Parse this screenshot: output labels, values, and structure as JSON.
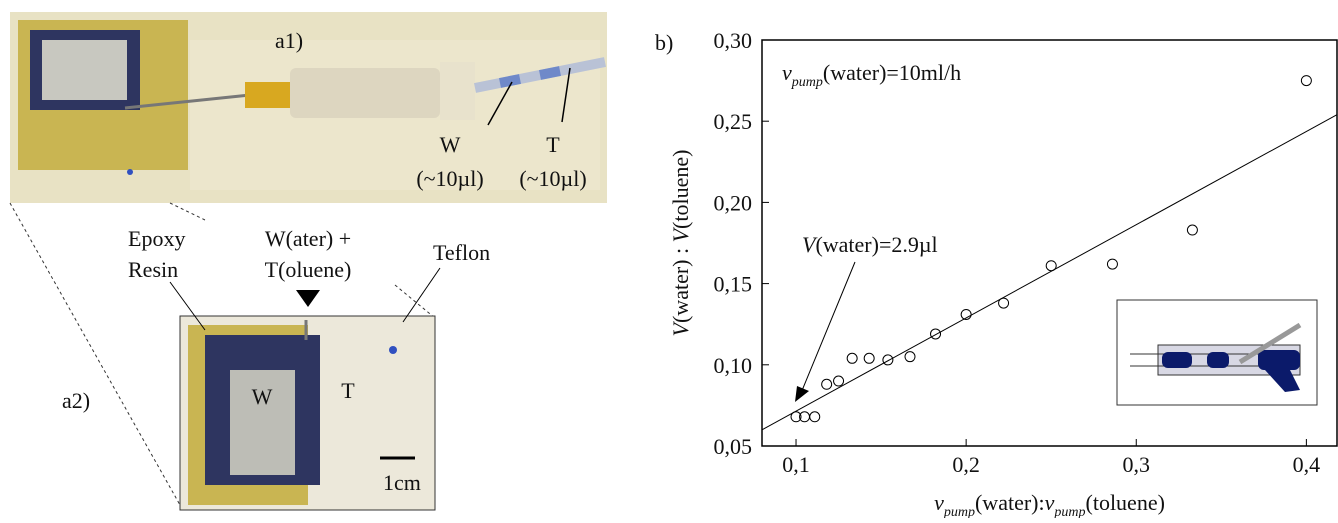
{
  "figure": {
    "panel_a1": "a1)",
    "panel_a2": "a2)",
    "panel_b": "b)",
    "a1_water": [
      "W",
      "(~10µl)"
    ],
    "a1_toluene": [
      "T",
      "(~10µl)"
    ],
    "a2_epoxy": [
      "Epoxy",
      "Resin"
    ],
    "a2_inlet": [
      "W(ater) +",
      "T(oluene)"
    ],
    "a2_teflon": "Teflon",
    "a2_w": "W",
    "a2_t": "T",
    "a2_scale": "1cm"
  },
  "chart_data": {
    "type": "scatter",
    "xlabel": [
      "v",
      "pump",
      "(water):",
      "v",
      "pump",
      "(toluene)"
    ],
    "ylabel": [
      "V",
      "(water) : ",
      "V",
      "(toluene)"
    ],
    "annotations": [
      [
        "v",
        "pump",
        "(water)=10ml/h"
      ],
      [
        "V",
        "(water)=2.9µl"
      ]
    ],
    "x": [
      0.1,
      0.105,
      0.111,
      0.118,
      0.125,
      0.133,
      0.143,
      0.154,
      0.167,
      0.182,
      0.2,
      0.222,
      0.25,
      0.286,
      0.333,
      0.4
    ],
    "y": [
      0.068,
      0.068,
      0.068,
      0.088,
      0.09,
      0.104,
      0.104,
      0.103,
      0.105,
      0.119,
      0.131,
      0.138,
      0.161,
      0.162,
      0.183,
      0.275
    ],
    "fit": {
      "x": [
        0.08,
        0.418
      ],
      "y": [
        0.06,
        0.254
      ]
    },
    "xlim": [
      0.08,
      0.418
    ],
    "ylim": [
      0.05,
      0.3
    ],
    "xticks": [
      {
        "value": 0.1,
        "label": "0,1"
      },
      {
        "value": 0.2,
        "label": "0,2"
      },
      {
        "value": 0.3,
        "label": "0,3"
      },
      {
        "value": 0.4,
        "label": "0,4"
      }
    ],
    "yticks": [
      {
        "value": 0.05,
        "label": "0,05"
      },
      {
        "value": 0.1,
        "label": "0,10"
      },
      {
        "value": 0.15,
        "label": "0,15"
      },
      {
        "value": 0.2,
        "label": "0,20"
      },
      {
        "value": 0.25,
        "label": "0,25"
      },
      {
        "value": 0.3,
        "label": "0,30"
      }
    ],
    "color": "#000000"
  }
}
